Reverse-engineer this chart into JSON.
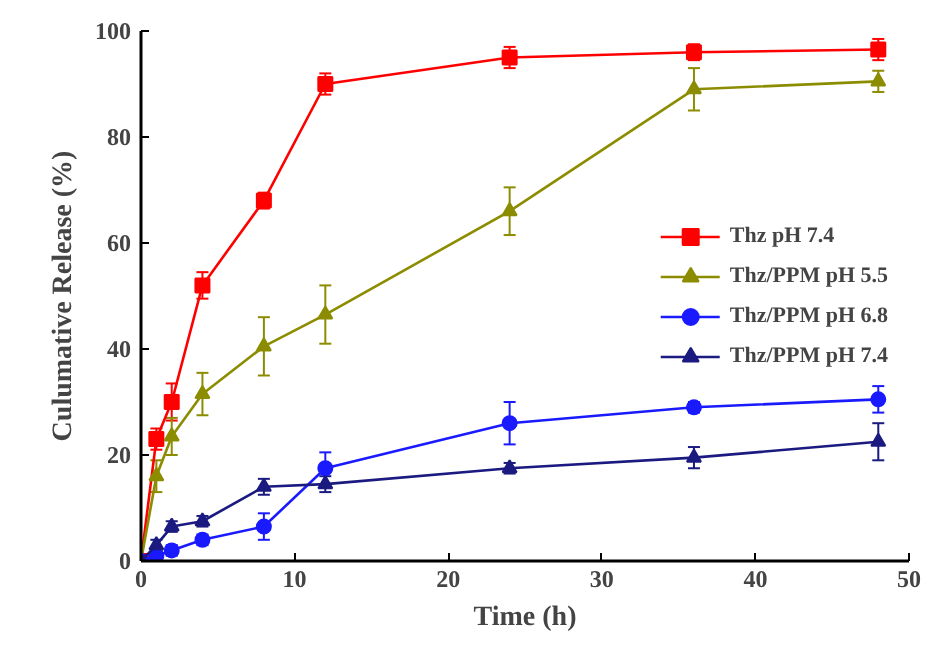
{
  "chart_data": {
    "type": "line",
    "xlabel": "Time (h)",
    "ylabel": "Culumative Release (%)",
    "x": [
      0,
      1,
      2,
      4,
      8,
      12,
      24,
      36,
      48
    ],
    "xlim": [
      0,
      50
    ],
    "xticks": [
      0,
      10,
      20,
      30,
      40,
      50
    ],
    "ylim": [
      0,
      100
    ],
    "yticks": [
      0,
      20,
      40,
      60,
      80,
      100
    ],
    "grid": false,
    "legend": "right",
    "line_style": "solid",
    "series": [
      {
        "name": "Thz pH 7.4",
        "color": "#ff0000",
        "marker": "square",
        "values": [
          0,
          23,
          30,
          52,
          68,
          90,
          95,
          96,
          96.5
        ],
        "errors": [
          0,
          2,
          3.5,
          2.5,
          1.5,
          2,
          2,
          1.5,
          2
        ]
      },
      {
        "name": "Thz/PPM pH 5.5",
        "color": "#8c8c00",
        "marker": "triangle",
        "values": [
          0,
          16,
          23.5,
          31.5,
          40.5,
          46.5,
          66,
          89,
          90.5
        ],
        "errors": [
          0,
          3,
          3.5,
          4,
          5.5,
          5.5,
          4.5,
          4,
          2
        ]
      },
      {
        "name": "Thz/PPM pH 6.8",
        "color": "#1a1aff",
        "marker": "circle",
        "values": [
          0,
          1,
          2,
          4,
          6.5,
          17.5,
          26,
          29,
          30.5
        ],
        "errors": [
          0,
          1,
          1,
          1,
          2.5,
          3,
          4,
          1,
          2.5
        ]
      },
      {
        "name": "Thz/PPM pH 7.4",
        "color": "#1a1a80",
        "marker": "triangle",
        "values": [
          0,
          3,
          6.5,
          7.5,
          14,
          14.5,
          17.5,
          19.5,
          22.5
        ],
        "errors": [
          0,
          1,
          1,
          1,
          1.5,
          1.5,
          1,
          2,
          3.5
        ]
      }
    ]
  }
}
